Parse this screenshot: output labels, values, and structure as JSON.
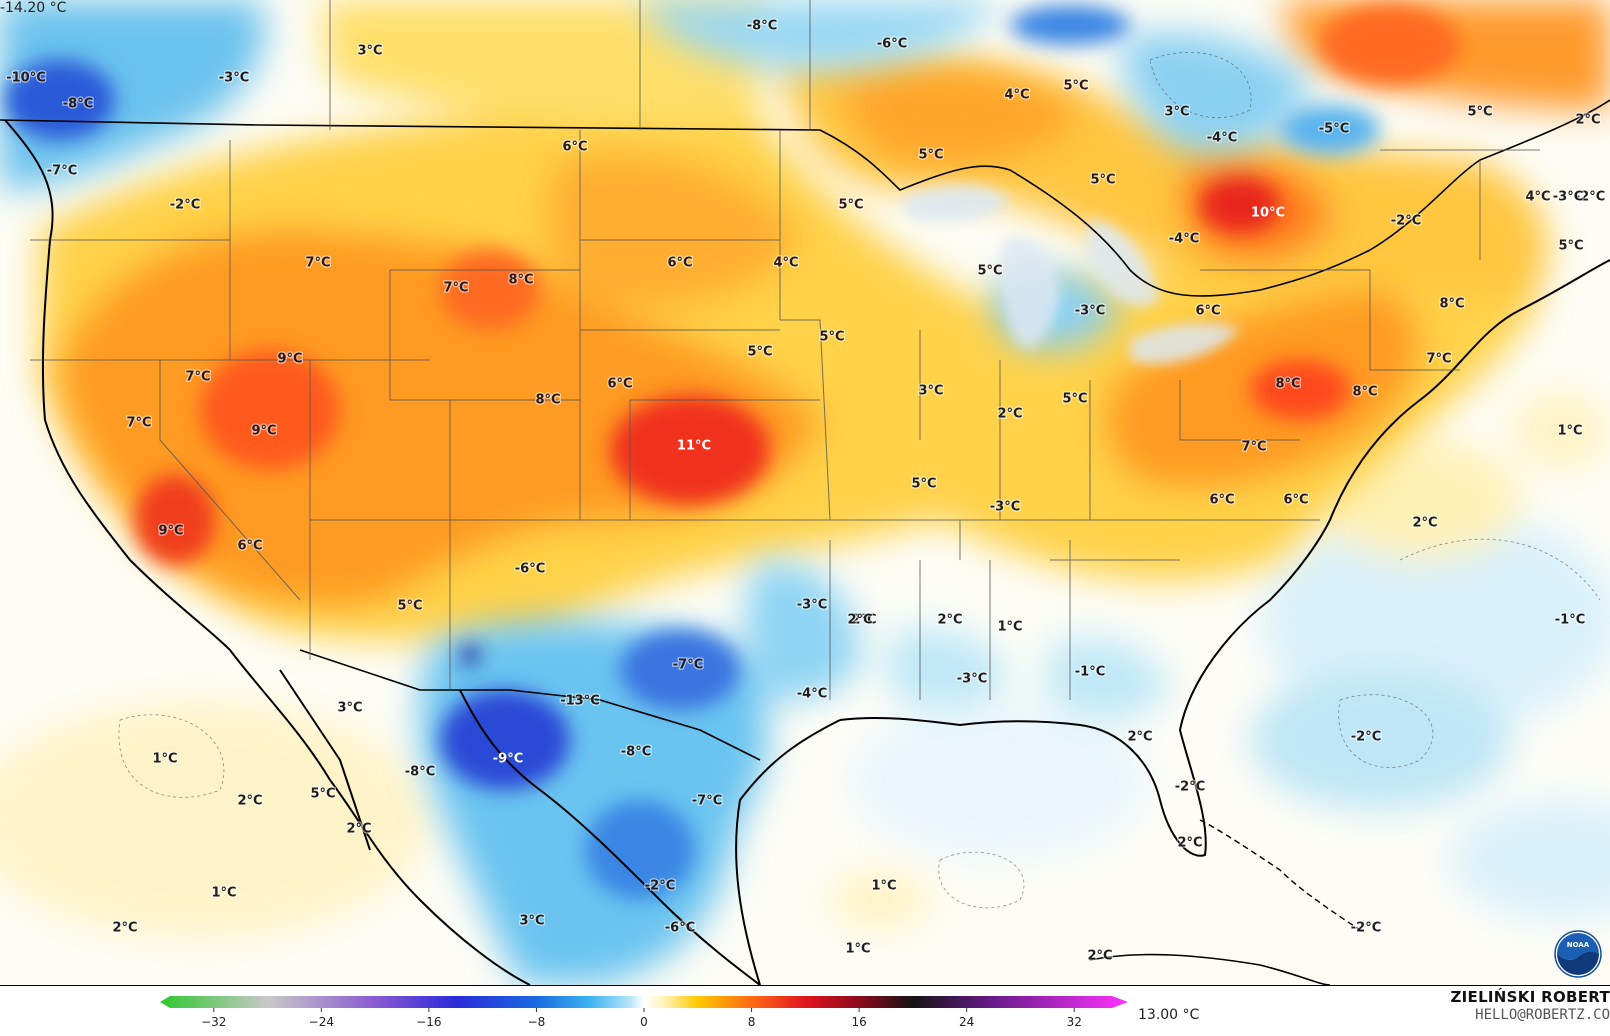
{
  "map": {
    "anomaly_labels": [
      {
        "text": "3°C"
      },
      {
        "text": "-8°C"
      },
      {
        "text": "-6°C"
      },
      {
        "text": "-10°C"
      },
      {
        "text": "-8°C"
      },
      {
        "text": "-3°C"
      },
      {
        "text": "-7°C"
      },
      {
        "text": "-2°C"
      },
      {
        "text": "6°C"
      },
      {
        "text": "7°C"
      },
      {
        "text": "9°C"
      },
      {
        "text": "7°C"
      },
      {
        "text": "7°C"
      },
      {
        "text": "9°C"
      },
      {
        "text": "9°C"
      },
      {
        "text": "6°C"
      },
      {
        "text": "5°C"
      },
      {
        "text": "7°C"
      },
      {
        "text": "8°C"
      },
      {
        "text": "8°C"
      },
      {
        "text": "6°C"
      },
      {
        "text": "6°C"
      },
      {
        "text": "4°C"
      },
      {
        "text": "5°C"
      },
      {
        "text": "5°C"
      },
      {
        "text": "11°C"
      },
      {
        "text": "-6°C"
      },
      {
        "text": "3°C"
      },
      {
        "text": "5°C"
      },
      {
        "text": "2°C"
      },
      {
        "text": "5°C"
      },
      {
        "text": "-3°C"
      },
      {
        "text": "4°C"
      },
      {
        "text": "5°C"
      },
      {
        "text": "5°C"
      },
      {
        "text": "5°C"
      },
      {
        "text": "5°C"
      },
      {
        "text": "5°C"
      },
      {
        "text": "-3°C"
      },
      {
        "text": "3°C"
      },
      {
        "text": "-4°C"
      },
      {
        "text": "-5°C"
      },
      {
        "text": "5°C"
      },
      {
        "text": "10°C"
      },
      {
        "text": "-2°C"
      },
      {
        "text": "-4°C"
      },
      {
        "text": "2°C"
      },
      {
        "text": "4°C"
      },
      {
        "text": "-2°C"
      },
      {
        "text": "5°C"
      },
      {
        "text": "6°C"
      },
      {
        "text": "8°C"
      },
      {
        "text": "8°C"
      },
      {
        "text": "8°C"
      },
      {
        "text": "7°C"
      },
      {
        "text": "7°C"
      },
      {
        "text": "6°C"
      },
      {
        "text": "6°C"
      },
      {
        "text": "1°C"
      },
      {
        "text": "2°C"
      },
      {
        "text": "-1°C"
      },
      {
        "text": "-2°C"
      },
      {
        "text": "-3°C"
      },
      {
        "text": "2°C"
      },
      {
        "text": "2°C"
      },
      {
        "text": "1°C"
      },
      {
        "text": "-1°C"
      },
      {
        "text": "-3°C"
      },
      {
        "text": "-4°C"
      },
      {
        "text": "-7°C"
      },
      {
        "text": "-13°C"
      },
      {
        "text": "-9°C"
      },
      {
        "text": "-8°C"
      },
      {
        "text": "-7°C"
      },
      {
        "text": "-8°C"
      },
      {
        "text": "3°C"
      },
      {
        "text": "5°C"
      },
      {
        "text": "2°C"
      },
      {
        "text": "1°C"
      },
      {
        "text": "2°C"
      },
      {
        "text": "1°C"
      },
      {
        "text": "2°C"
      },
      {
        "text": "3°C"
      },
      {
        "text": "-6°C"
      },
      {
        "text": "1°C"
      },
      {
        "text": "1°C"
      },
      {
        "text": "-2°C"
      },
      {
        "text": "-2°C"
      },
      {
        "text": "2°C"
      },
      {
        "text": "2°C"
      },
      {
        "text": "2°C"
      },
      {
        "text": "-2°C"
      },
      {
        "text": "-3°C"
      },
      {
        "text": "2°C"
      }
    ]
  },
  "colorbar": {
    "min_label": "-14.20 °C",
    "max_label": "13.00 °C",
    "ticks": [
      "−32",
      "−24",
      "−16",
      "−8",
      "0",
      "8",
      "16",
      "24",
      "32"
    ],
    "tick_values": [
      -32,
      -24,
      -16,
      -8,
      0,
      8,
      16,
      24,
      32
    ],
    "range": [
      -36,
      36
    ],
    "stops": [
      {
        "value": -36,
        "color": "#2ec82e"
      },
      {
        "value": -28,
        "color": "#c8c8c8"
      },
      {
        "value": -20,
        "color": "#8a5ad2"
      },
      {
        "value": -14,
        "color": "#2a2ad8"
      },
      {
        "value": -8,
        "color": "#1a6ae0"
      },
      {
        "value": -4,
        "color": "#3cb4f0"
      },
      {
        "value": -1,
        "color": "#b8e6f8"
      },
      {
        "value": 0,
        "color": "#ffffff"
      },
      {
        "value": 1.5,
        "color": "#fff4b8"
      },
      {
        "value": 4,
        "color": "#ffc800"
      },
      {
        "value": 8,
        "color": "#ff6a14"
      },
      {
        "value": 12,
        "color": "#e0141e"
      },
      {
        "value": 16,
        "color": "#8c0a1e"
      },
      {
        "value": 20,
        "color": "#141414"
      },
      {
        "value": 26,
        "color": "#6a1a8c"
      },
      {
        "value": 36,
        "color": "#ff32ff"
      }
    ]
  },
  "credit": {
    "name": "ZIELIŃSKI ROBERT",
    "email": "HELLO@ROBERTZ.CO"
  },
  "logo": {
    "icon": "noaa-logo",
    "text": "NOAA"
  }
}
